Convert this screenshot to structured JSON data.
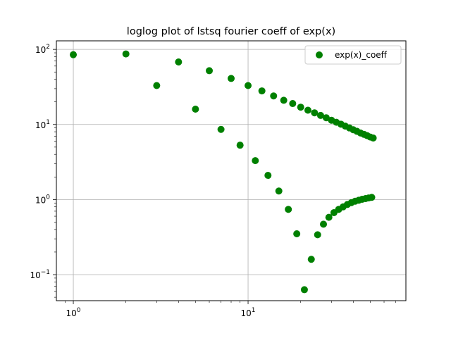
{
  "chart_data": {
    "type": "scatter",
    "title": "loglog plot of lstsq fourier coeff of exp(x)",
    "xlabel": "",
    "ylabel": "",
    "xscale": "log",
    "yscale": "log",
    "xlim": [
      0.8,
      80
    ],
    "ylim": [
      0.045,
      130
    ],
    "x_ticks": [
      {
        "value": 1,
        "base": "10",
        "exp": "0"
      },
      {
        "value": 10,
        "base": "10",
        "exp": "1"
      }
    ],
    "y_ticks": [
      {
        "value": 0.1,
        "base": "10",
        "exp": "−1"
      },
      {
        "value": 1,
        "base": "10",
        "exp": "0"
      },
      {
        "value": 10,
        "base": "10",
        "exp": "1"
      },
      {
        "value": 100,
        "base": "10",
        "exp": "2"
      }
    ],
    "grid": true,
    "legend_position": "top-right",
    "series": [
      {
        "name": "exp(x)_coeff",
        "color": "#008000",
        "marker": "circle",
        "points": [
          [
            1,
            85
          ],
          [
            2,
            87
          ],
          [
            3,
            33
          ],
          [
            4,
            68
          ],
          [
            5,
            16
          ],
          [
            6,
            52
          ],
          [
            7,
            8.6
          ],
          [
            8,
            41
          ],
          [
            9,
            5.3
          ],
          [
            10,
            33
          ],
          [
            11,
            3.3
          ],
          [
            12,
            28
          ],
          [
            13,
            2.1
          ],
          [
            14,
            24
          ],
          [
            15,
            1.3
          ],
          [
            16,
            21
          ],
          [
            17,
            0.74
          ],
          [
            18,
            19
          ],
          [
            19,
            0.35
          ],
          [
            20,
            17
          ],
          [
            21,
            0.063
          ],
          [
            22,
            15.5
          ],
          [
            23,
            0.16
          ],
          [
            24,
            14.3
          ],
          [
            25,
            0.34
          ],
          [
            26,
            13.2
          ],
          [
            27,
            0.47
          ],
          [
            28,
            12.3
          ],
          [
            29,
            0.58
          ],
          [
            30,
            11.4
          ],
          [
            31,
            0.67
          ],
          [
            32,
            10.7
          ],
          [
            33,
            0.74
          ],
          [
            34,
            10.1
          ],
          [
            35,
            0.8
          ],
          [
            36,
            9.5
          ],
          [
            37,
            0.86
          ],
          [
            38,
            9.0
          ],
          [
            39,
            0.91
          ],
          [
            40,
            8.5
          ],
          [
            41,
            0.95
          ],
          [
            42,
            8.1
          ],
          [
            43,
            0.98
          ],
          [
            44,
            7.7
          ],
          [
            45,
            1.01
          ],
          [
            46,
            7.4
          ],
          [
            47,
            1.03
          ],
          [
            48,
            7.1
          ],
          [
            49,
            1.05
          ],
          [
            50,
            6.8
          ],
          [
            51,
            1.07
          ],
          [
            52,
            6.6
          ]
        ]
      }
    ]
  }
}
